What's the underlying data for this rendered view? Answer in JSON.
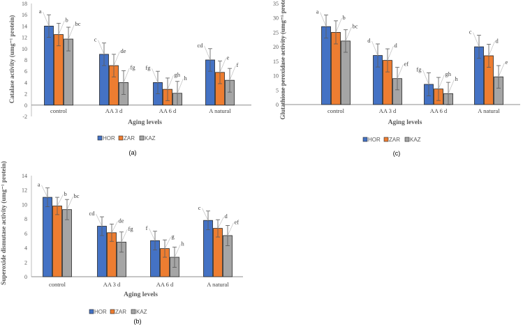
{
  "colors": {
    "HOR": "#4472c4",
    "ZAR": "#ed7d31",
    "KAZ": "#a5a5a5"
  },
  "chart_data": [
    {
      "id": "a",
      "type": "bar",
      "caption": "(a)",
      "xlabel": "Aging levels",
      "ylabel": "Catalase activity (umg⁻¹ protein)",
      "ylim": [
        -2,
        18
      ],
      "yticks": [
        -2,
        0,
        2,
        4,
        6,
        8,
        10,
        12,
        14,
        16,
        18
      ],
      "categories": [
        "control",
        "AA 3 d",
        "AA 6 d",
        "A natural"
      ],
      "legend": "bottom",
      "series": [
        {
          "name": "HOR",
          "values": [
            14,
            9,
            4,
            8
          ],
          "errors": [
            2,
            2,
            2,
            2
          ],
          "letters": [
            "a",
            "c",
            "fg",
            "cd"
          ]
        },
        {
          "name": "ZAR",
          "values": [
            12.5,
            7,
            2.8,
            5.8
          ],
          "errors": [
            2,
            2,
            2,
            2
          ],
          "letters": [
            "b",
            "de",
            "gh",
            "e"
          ]
        },
        {
          "name": "KAZ",
          "values": [
            11.7,
            4,
            2.1,
            4.4
          ],
          "errors": [
            2.1,
            2.1,
            2.1,
            2.1
          ],
          "letters": [
            "bc",
            "fg",
            "h",
            "f"
          ]
        }
      ]
    },
    {
      "id": "c",
      "type": "bar",
      "caption": "(c)",
      "xlabel": "Aging levels",
      "ylabel": "Glutathione peroxidase activity (umg⁻¹ protein)",
      "ylim": [
        0,
        35
      ],
      "yticks": [
        0,
        5,
        10,
        15,
        20,
        25,
        30,
        35
      ],
      "categories": [
        "control",
        "AA 3 d",
        "AA 6 d",
        "A natural"
      ],
      "legend": "bottom",
      "series": [
        {
          "name": "HOR",
          "values": [
            27,
            17,
            7,
            20
          ],
          "errors": [
            4,
            4,
            4,
            4
          ],
          "letters": [
            "a",
            "d",
            "fg",
            "c"
          ]
        },
        {
          "name": "ZAR",
          "values": [
            25,
            15.3,
            5.4,
            16.9
          ],
          "errors": [
            4,
            4,
            4,
            4
          ],
          "letters": [
            "b",
            "d",
            "gh",
            "d"
          ]
        },
        {
          "name": "KAZ",
          "values": [
            22,
            9,
            3.8,
            9.6
          ],
          "errors": [
            3.9,
            3.9,
            3.9,
            3.9
          ],
          "letters": [
            "bc",
            "ef",
            "h",
            "e"
          ]
        }
      ]
    },
    {
      "id": "b",
      "type": "bar",
      "caption": "(b)",
      "xlabel": "Aging levels",
      "ylabel": "Superoxide dismutase activity (umg⁻¹ protein)",
      "ylim": [
        0,
        14
      ],
      "yticks": [
        0,
        2,
        4,
        6,
        8,
        10,
        12,
        14
      ],
      "categories": [
        "control",
        "AA 3 d",
        "AA 6 d",
        "A natural"
      ],
      "legend": "bottom",
      "series": [
        {
          "name": "HOR",
          "values": [
            11,
            7,
            5,
            7.8
          ],
          "errors": [
            1.3,
            1.3,
            1.3,
            1.3
          ],
          "letters": [
            "a",
            "cd",
            "f",
            "c"
          ]
        },
        {
          "name": "ZAR",
          "values": [
            9.8,
            6.1,
            3.9,
            6.7
          ],
          "errors": [
            1.2,
            1.2,
            1.2,
            1.2
          ],
          "letters": [
            "b",
            "de",
            "g",
            "d"
          ]
        },
        {
          "name": "KAZ",
          "values": [
            9.3,
            4.8,
            2.7,
            5.7
          ],
          "errors": [
            1.4,
            1.4,
            1.4,
            1.4
          ],
          "letters": [
            "bc",
            "fg",
            "h",
            "ef"
          ]
        }
      ]
    }
  ]
}
